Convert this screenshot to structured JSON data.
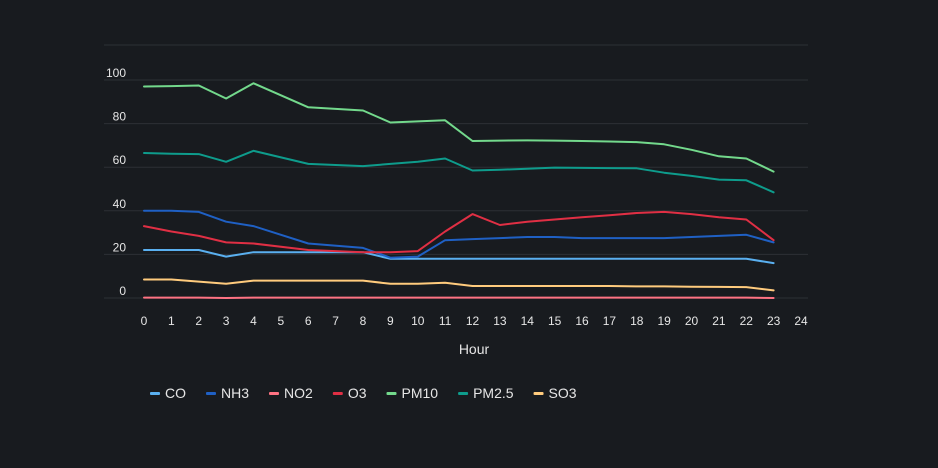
{
  "chart_data": {
    "type": "line",
    "title": "",
    "xlabel": "Hour",
    "ylabel": "",
    "xlim": [
      0,
      24
    ],
    "ylim": [
      0,
      100
    ],
    "x_ticks": [
      0,
      1,
      2,
      3,
      4,
      5,
      6,
      7,
      8,
      9,
      10,
      11,
      12,
      13,
      14,
      15,
      16,
      17,
      18,
      19,
      20,
      21,
      22,
      23,
      24
    ],
    "y_ticks": [
      0,
      20,
      40,
      60,
      80,
      100
    ],
    "grid": true,
    "legend_position": "bottom-left",
    "x": [
      0,
      1,
      2,
      3,
      4,
      6,
      8,
      9,
      10,
      11,
      12,
      13,
      14,
      15,
      16,
      17,
      18,
      19,
      20,
      21,
      22,
      23
    ],
    "series": [
      {
        "name": "CO",
        "color": "#5ab0f0",
        "values": [
          22,
          22,
          22,
          19,
          21,
          21,
          21,
          18,
          18,
          18,
          18,
          18,
          18,
          18,
          18,
          18,
          18,
          18,
          18,
          18,
          18,
          16
        ]
      },
      {
        "name": "NH3",
        "color": "#1f60c4",
        "values": [
          40,
          40,
          39.5,
          35,
          33,
          25,
          23,
          18.5,
          19,
          26.5,
          27,
          27.5,
          28,
          28,
          27.5,
          27.5,
          27.5,
          27.5,
          28,
          28.5,
          29,
          25.5
        ]
      },
      {
        "name": "NO2",
        "color": "#ff7383",
        "values": [
          0.2,
          0.2,
          0.2,
          0,
          0.2,
          0.2,
          0.2,
          0.2,
          0.2,
          0.2,
          0.2,
          0.2,
          0.2,
          0.2,
          0.2,
          0.2,
          0.2,
          0.2,
          0.2,
          0.2,
          0.2,
          0
        ]
      },
      {
        "name": "O3",
        "color": "#e02f44",
        "values": [
          33,
          30.5,
          28.5,
          25.5,
          25,
          22,
          21,
          21,
          21.5,
          30.5,
          38.5,
          33.5,
          35,
          36,
          37,
          38,
          39,
          39.5,
          38.5,
          37,
          36,
          26.5
        ]
      },
      {
        "name": "PM10",
        "color": "#73d98c",
        "values": [
          97,
          97.2,
          97.5,
          91.5,
          98.5,
          87.5,
          86,
          80.5,
          81,
          81.5,
          72,
          72.2,
          72.3,
          72.2,
          72,
          71.8,
          71.5,
          70.5,
          68,
          65,
          64,
          58
        ]
      },
      {
        "name": "PM2.5",
        "color": "#0e9c8c",
        "values": [
          66.5,
          66.2,
          66,
          62.5,
          67.5,
          61.5,
          60.5,
          61.5,
          62.5,
          64,
          58.5,
          58.8,
          59.3,
          59.8,
          59.7,
          59.6,
          59.5,
          57.5,
          56,
          54.3,
          54,
          48.5
        ]
      },
      {
        "name": "SO3",
        "color": "#ffcb7d",
        "values": [
          8.5,
          8.5,
          7.5,
          6.5,
          8,
          8,
          8,
          6.5,
          6.5,
          7,
          5.5,
          5.5,
          5.5,
          5.5,
          5.5,
          5.5,
          5.3,
          5.3,
          5.2,
          5.1,
          5,
          3.5
        ]
      }
    ]
  }
}
